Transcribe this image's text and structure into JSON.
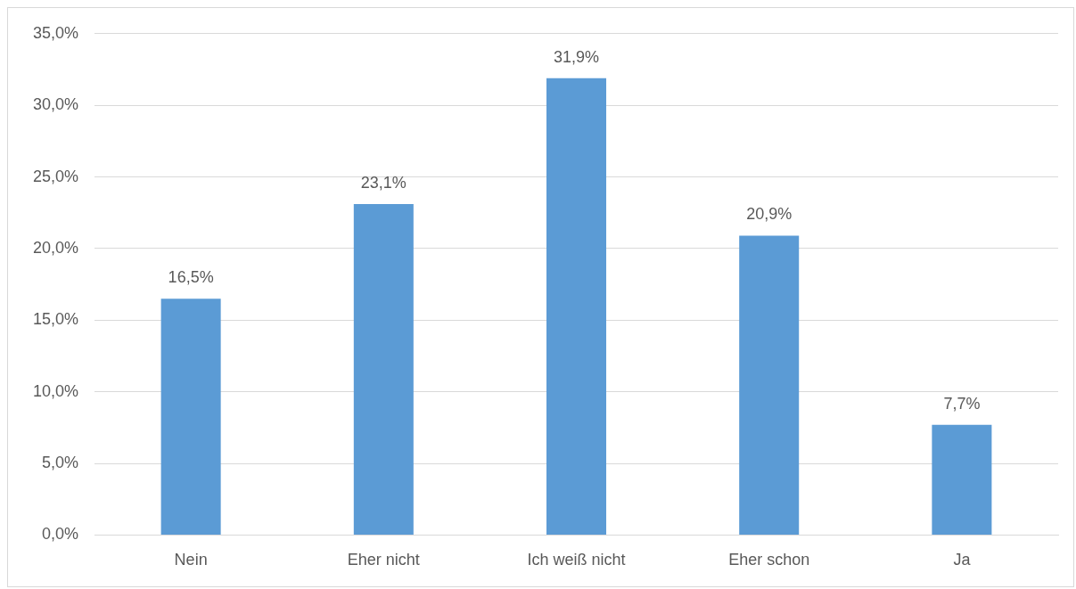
{
  "chart_data": {
    "type": "bar",
    "categories": [
      "Nein",
      "Eher nicht",
      "Ich weiß nicht",
      "Eher schon",
      "Ja"
    ],
    "values": [
      16.5,
      23.1,
      31.9,
      20.9,
      7.7
    ],
    "value_labels": [
      "16,5%",
      "23,1%",
      "31,9%",
      "20,9%",
      "7,7%"
    ],
    "color": "#5b9bd5",
    "ylim": [
      0,
      35
    ],
    "yticks": [
      {
        "value": 0,
        "label": "0,0%"
      },
      {
        "value": 5,
        "label": "5,0%"
      },
      {
        "value": 10,
        "label": "10,0%"
      },
      {
        "value": 15,
        "label": "15,0%"
      },
      {
        "value": 20,
        "label": "20,0%"
      },
      {
        "value": 25,
        "label": "25,0%"
      },
      {
        "value": 30,
        "label": "30,0%"
      },
      {
        "value": 35,
        "label": "35,0%"
      }
    ],
    "grid": "y"
  }
}
